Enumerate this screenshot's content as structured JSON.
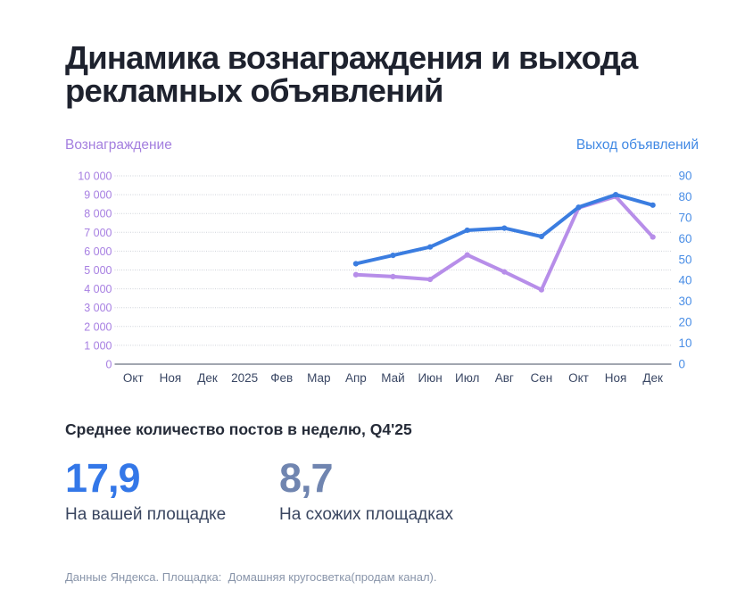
{
  "title": "Динамика вознаграждения и выхода рекламных объявлений",
  "chart_data": {
    "type": "line",
    "categories": [
      "Окт",
      "Ноя",
      "Дек",
      "2025",
      "Фев",
      "Мар",
      "Апр",
      "Май",
      "Июн",
      "Июл",
      "Авг",
      "Сен",
      "Окт",
      "Ноя",
      "Дек"
    ],
    "series": [
      {
        "name": "Вознаграждение",
        "axis": "left",
        "color": "#b78ee9",
        "start_index": 6,
        "values": [
          4750,
          4650,
          4500,
          5800,
          4900,
          3950,
          8300,
          8900,
          6750
        ]
      },
      {
        "name": "Выход объявлений",
        "axis": "right",
        "color": "#3b7de0",
        "start_index": 6,
        "values": [
          48,
          52,
          56,
          64,
          65,
          61,
          75,
          81,
          76
        ]
      }
    ],
    "left_axis": {
      "min": 0,
      "max": 10000,
      "step": 1000,
      "ticks": [
        "0",
        "1 000",
        "2 000",
        "3 000",
        "4 000",
        "5 000",
        "6 000",
        "7 000",
        "8 000",
        "9 000",
        "10 000"
      ],
      "label_color": "#a77fe2"
    },
    "right_axis": {
      "min": 0,
      "max": 90,
      "step": 10,
      "ticks": [
        "0",
        "10",
        "20",
        "30",
        "40",
        "50",
        "60",
        "70",
        "80",
        "90"
      ],
      "label_color": "#4a8ee6"
    },
    "grid": {
      "on": true,
      "color": "#cfd3da"
    },
    "axis_line_color": "#6b7280",
    "x_label_color": "#3a4764",
    "legend_position": "top"
  },
  "stats": {
    "heading": "Среднее количество постов в неделю, Q4'25",
    "items": [
      {
        "value": "17,9",
        "label": "На вашей площадке",
        "color": "#3377e8"
      },
      {
        "value": "8,7",
        "label": "На схожих площадках",
        "color": "#7085b0"
      }
    ]
  },
  "footer": "Данные Яндекса. Площадка:  Домашняя кругосветка(продам канал)."
}
